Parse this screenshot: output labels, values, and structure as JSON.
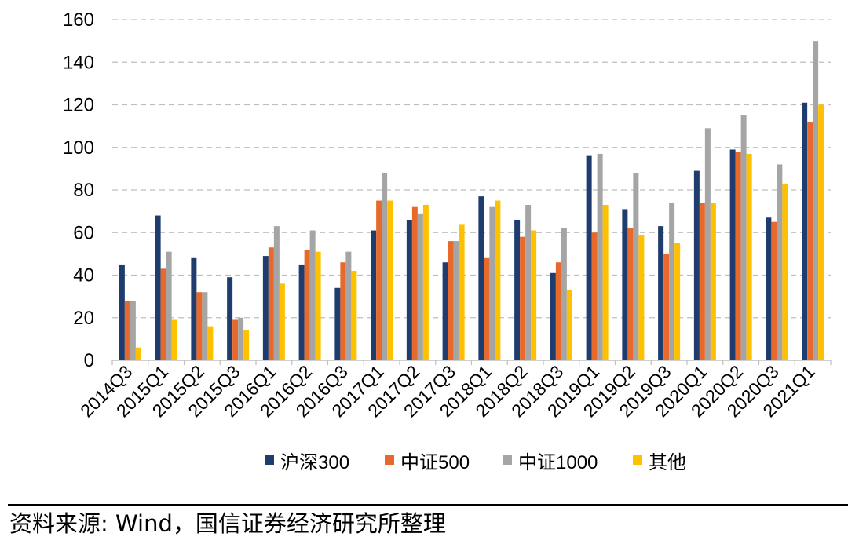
{
  "chart_data": {
    "type": "bar",
    "categories": [
      "2014Q3",
      "2015Q1",
      "2015Q2",
      "2015Q3",
      "2016Q1",
      "2016Q2",
      "2016Q3",
      "2017Q1",
      "2017Q2",
      "2017Q3",
      "2018Q1",
      "2018Q2",
      "2018Q3",
      "2019Q1",
      "2019Q2",
      "2019Q3",
      "2020Q1",
      "2020Q2",
      "2020Q3",
      "2021Q1"
    ],
    "series": [
      {
        "name": "沪深300",
        "color": "#1f3c6e",
        "values": [
          45,
          68,
          48,
          39,
          49,
          45,
          34,
          61,
          66,
          46,
          77,
          66,
          41,
          96,
          71,
          63,
          89,
          99,
          67,
          121
        ]
      },
      {
        "name": "中证500",
        "color": "#e8692c",
        "values": [
          28,
          43,
          32,
          19,
          53,
          52,
          46,
          75,
          72,
          56,
          48,
          58,
          46,
          60,
          62,
          50,
          74,
          98,
          65,
          112
        ]
      },
      {
        "name": "中证1000",
        "color": "#a5a5a5",
        "values": [
          28,
          51,
          32,
          20,
          63,
          61,
          51,
          88,
          69,
          56,
          72,
          73,
          62,
          97,
          88,
          74,
          109,
          115,
          92,
          150
        ]
      },
      {
        "name": "其他",
        "color": "#ffc000",
        "values": [
          6,
          19,
          16,
          14,
          36,
          51,
          42,
          75,
          73,
          64,
          75,
          61,
          33,
          73,
          59,
          55,
          74,
          97,
          83,
          120
        ]
      }
    ],
    "ylim": [
      0,
      160
    ],
    "yticks": [
      "0",
      "20",
      "40",
      "60",
      "80",
      "100",
      "120",
      "140",
      "160"
    ],
    "grid": true,
    "legend_position": "bottom",
    "title": "",
    "xlabel": "",
    "ylabel": ""
  },
  "source": "资料来源: Wind，国信证券经济研究所整理"
}
